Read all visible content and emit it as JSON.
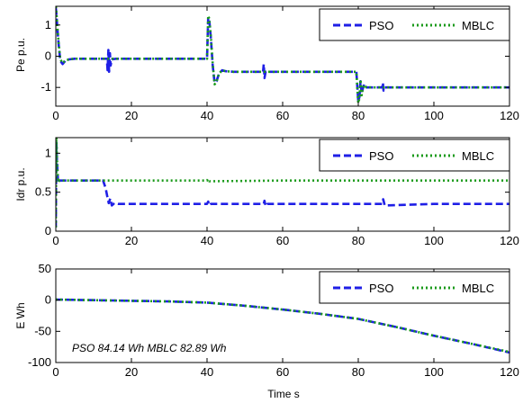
{
  "colors": {
    "pso": "#1f1fe6",
    "mblc": "#1a9a1a",
    "axis": "#000000",
    "background": "#ffffff"
  },
  "chart_data": [
    {
      "type": "line",
      "ylabel": "Pe p.u.",
      "xlabel": "",
      "xlim": [
        0,
        120
      ],
      "ylim": [
        -1.6,
        1.6
      ],
      "xticks": [
        0,
        20,
        40,
        60,
        80,
        100,
        120
      ],
      "yticks": [
        -1,
        0,
        1
      ],
      "grid": false,
      "legend_placement": "top-right",
      "series": [
        {
          "name": "PSO",
          "style": "dashed",
          "x": [
            0,
            0.2,
            0.4,
            0.8,
            1.2,
            1.8,
            2.5,
            3.5,
            5,
            8,
            12,
            13.5,
            13.7,
            13.9,
            14.1,
            14.3,
            14.5,
            14.8,
            16,
            20,
            30,
            40,
            40.3,
            40.6,
            41,
            41.5,
            42,
            42.5,
            43.2,
            44,
            45,
            47,
            50,
            54.8,
            55,
            55.2,
            55.5,
            56,
            60,
            70,
            79,
            79.5,
            80,
            80.3,
            80.6,
            80.9,
            81.2,
            81.6,
            82.2,
            83,
            85,
            86.3,
            86.5,
            86.7,
            87,
            90,
            100,
            110,
            120
          ],
          "y": [
            1.55,
            1.3,
            0.9,
            0.3,
            -0.15,
            -0.25,
            -0.15,
            -0.1,
            -0.08,
            -0.08,
            -0.08,
            -0.08,
            -0.45,
            0.2,
            -0.5,
            0.1,
            -0.3,
            -0.1,
            -0.08,
            -0.08,
            -0.08,
            -0.08,
            1.25,
            1.15,
            0.6,
            -0.3,
            -0.85,
            -0.8,
            -0.55,
            -0.45,
            -0.48,
            -0.5,
            -0.5,
            -0.5,
            -0.25,
            -0.7,
            -0.5,
            -0.5,
            -0.5,
            -0.5,
            -0.5,
            -0.5,
            -1.45,
            -1.3,
            -0.8,
            -1.2,
            -1.05,
            -0.9,
            -1.0,
            -1.0,
            -1.0,
            -1.0,
            -0.85,
            -1.1,
            -1.0,
            -1.0,
            -1.0,
            -1.0,
            -1.0
          ]
        },
        {
          "name": "MBLC",
          "style": "dotted",
          "x": [
            0,
            0.2,
            0.4,
            0.8,
            1.2,
            1.8,
            2.5,
            3.5,
            5,
            8,
            12,
            20,
            30,
            40,
            40.3,
            40.6,
            41,
            41.5,
            42,
            42.5,
            43.2,
            44,
            45,
            47,
            50,
            60,
            70,
            79,
            79.5,
            80,
            80.3,
            80.6,
            80.9,
            81.2,
            81.6,
            82.2,
            83,
            90,
            100,
            110,
            120
          ],
          "y": [
            1.6,
            1.35,
            0.95,
            0.35,
            -0.1,
            -0.22,
            -0.14,
            -0.1,
            -0.08,
            -0.08,
            -0.08,
            -0.08,
            -0.08,
            -0.08,
            1.3,
            1.2,
            0.65,
            -0.25,
            -0.9,
            -0.82,
            -0.55,
            -0.45,
            -0.48,
            -0.5,
            -0.5,
            -0.5,
            -0.5,
            -0.5,
            -0.5,
            -1.5,
            -1.35,
            -0.75,
            -1.25,
            -1.05,
            -0.92,
            -1.0,
            -1.0,
            -1.0,
            -1.0,
            -1.0,
            -1.0
          ]
        }
      ]
    },
    {
      "type": "line",
      "ylabel": "Idr p.u.",
      "xlabel": "",
      "xlim": [
        0,
        120
      ],
      "ylim": [
        0,
        1.2
      ],
      "xticks": [
        0,
        20,
        40,
        60,
        80,
        100,
        120
      ],
      "yticks": [
        0,
        0.5,
        1
      ],
      "grid": false,
      "legend_placement": "top-right",
      "series": [
        {
          "name": "PSO",
          "style": "dashed",
          "x": [
            0,
            0.15,
            0.3,
            0.6,
            1,
            2,
            5,
            10,
            12.5,
            13.2,
            13.6,
            14,
            14.4,
            14.8,
            15.5,
            16.5,
            18,
            20,
            30,
            40,
            40.3,
            40.6,
            41,
            50,
            55,
            55.2,
            55.5,
            56,
            70,
            80,
            86.3,
            86.6,
            87,
            100,
            120
          ],
          "y": [
            0.05,
            1.15,
            0.9,
            0.62,
            0.65,
            0.65,
            0.65,
            0.65,
            0.65,
            0.55,
            0.45,
            0.36,
            0.42,
            0.33,
            0.36,
            0.35,
            0.35,
            0.35,
            0.35,
            0.35,
            0.38,
            0.33,
            0.35,
            0.35,
            0.35,
            0.39,
            0.32,
            0.35,
            0.35,
            0.35,
            0.35,
            0.41,
            0.33,
            0.35,
            0.35
          ]
        },
        {
          "name": "MBLC",
          "style": "dotted",
          "x": [
            0,
            0.15,
            0.3,
            0.6,
            1,
            2,
            10,
            40,
            40.3,
            40.6,
            60,
            80,
            100,
            120
          ],
          "y": [
            0.05,
            1.2,
            0.92,
            0.63,
            0.65,
            0.65,
            0.65,
            0.65,
            0.67,
            0.64,
            0.65,
            0.65,
            0.65,
            0.65
          ]
        }
      ]
    },
    {
      "type": "line",
      "ylabel": "E Wh",
      "xlabel": "Time s",
      "xlim": [
        0,
        120
      ],
      "ylim": [
        -100,
        50
      ],
      "xticks": [
        0,
        20,
        40,
        60,
        80,
        100,
        120
      ],
      "yticks": [
        -100,
        -50,
        0,
        50
      ],
      "grid": false,
      "legend_placement": "top-right",
      "annotation": "PSO 84.14 Wh  MBLC 82.89 Wh",
      "series": [
        {
          "name": "PSO",
          "style": "dashed",
          "x": [
            0,
            10,
            20,
            30,
            40,
            50,
            60,
            70,
            80,
            90,
            100,
            110,
            120
          ],
          "y": [
            1,
            0,
            -1,
            -2,
            -4,
            -9,
            -15,
            -22,
            -30,
            -43,
            -57,
            -70,
            -84
          ]
        },
        {
          "name": "MBLC",
          "style": "dotted",
          "x": [
            0,
            10,
            20,
            30,
            40,
            50,
            60,
            70,
            80,
            90,
            100,
            110,
            120
          ],
          "y": [
            1,
            0,
            -1,
            -2,
            -4,
            -9,
            -15,
            -22,
            -30,
            -43,
            -57,
            -70,
            -83
          ]
        }
      ]
    }
  ]
}
